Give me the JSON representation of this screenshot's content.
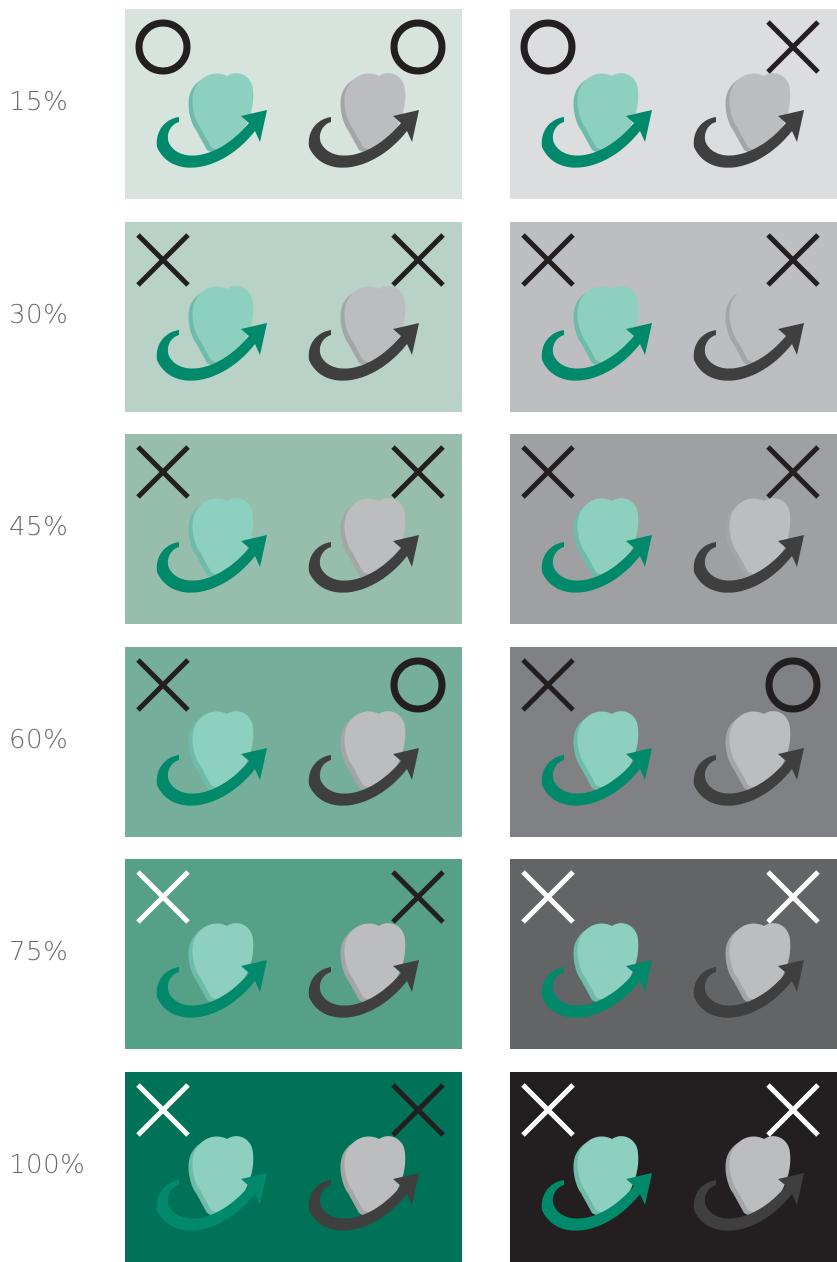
{
  "colors": {
    "heart_mint": "#8dd0c0",
    "heart_mint_shadow": "#6fbba9",
    "arrow_green": "#00896a",
    "heart_gray": "#bcbdbf",
    "heart_gray_shadow": "#a4a5a7",
    "arrow_dark": "#3f3f40",
    "mark_dark": "#231f20",
    "mark_light": "#ffffff"
  },
  "rows": [
    {
      "label": "15%",
      "panels": [
        {
          "background": "#d7e3dd",
          "marks": [
            {
              "symbol": "circle",
              "color": "dark"
            },
            {
              "symbol": "circle",
              "color": "dark"
            }
          ]
        },
        {
          "background": "#dcdddf",
          "marks": [
            {
              "symbol": "circle",
              "color": "dark"
            },
            {
              "symbol": "cross",
              "color": "dark"
            }
          ]
        }
      ]
    },
    {
      "label": "30%",
      "panels": [
        {
          "background": "#b8d2c8",
          "marks": [
            {
              "symbol": "cross",
              "color": "dark"
            },
            {
              "symbol": "cross",
              "color": "dark"
            }
          ]
        },
        {
          "background": "#bdbec1",
          "marks": [
            {
              "symbol": "cross",
              "color": "dark"
            },
            {
              "symbol": "cross",
              "color": "dark"
            }
          ]
        }
      ]
    },
    {
      "label": "45%",
      "panels": [
        {
          "background": "#97bdad",
          "marks": [
            {
              "symbol": "cross",
              "color": "dark"
            },
            {
              "symbol": "cross",
              "color": "dark"
            }
          ]
        },
        {
          "background": "#9fa0a2",
          "marks": [
            {
              "symbol": "cross",
              "color": "dark"
            },
            {
              "symbol": "cross",
              "color": "dark"
            }
          ]
        }
      ]
    },
    {
      "label": "60%",
      "panels": [
        {
          "background": "#75ae9a",
          "marks": [
            {
              "symbol": "cross",
              "color": "dark"
            },
            {
              "symbol": "circle",
              "color": "dark"
            }
          ]
        },
        {
          "background": "#808184",
          "marks": [
            {
              "symbol": "cross",
              "color": "dark"
            },
            {
              "symbol": "circle",
              "color": "dark"
            }
          ]
        }
      ]
    },
    {
      "label": "75%",
      "panels": [
        {
          "background": "#55a087",
          "marks": [
            {
              "symbol": "cross",
              "color": "light"
            },
            {
              "symbol": "cross",
              "color": "dark"
            }
          ]
        },
        {
          "background": "#636466",
          "marks": [
            {
              "symbol": "cross",
              "color": "light"
            },
            {
              "symbol": "cross",
              "color": "light"
            }
          ]
        }
      ]
    },
    {
      "label": "100%",
      "panels": [
        {
          "background": "#007257",
          "marks": [
            {
              "symbol": "cross",
              "color": "light"
            },
            {
              "symbol": "cross",
              "color": "dark"
            }
          ]
        },
        {
          "background": "#231f20",
          "marks": [
            {
              "symbol": "cross",
              "color": "light"
            },
            {
              "symbol": "cross",
              "color": "light"
            }
          ]
        }
      ]
    }
  ]
}
